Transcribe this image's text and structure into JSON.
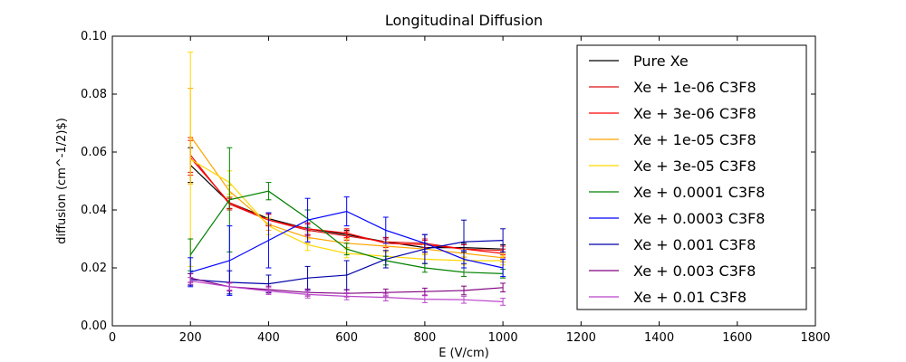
{
  "chart_data": {
    "type": "line",
    "title": "Longitudinal Diffusion",
    "xlabel": "E (V/cm)",
    "ylabel": "diffusion (cm^-1/2)$)",
    "xlim": [
      0,
      1800
    ],
    "ylim": [
      0,
      0.1
    ],
    "xticks": [
      0,
      200,
      400,
      600,
      800,
      1000,
      1200,
      1400,
      1600,
      1800
    ],
    "xtick_labels": [
      "0",
      "200",
      "400",
      "600",
      "800",
      "1000",
      "1200",
      "1400",
      "1600",
      "1800"
    ],
    "yticks": [
      0,
      0.02,
      0.04,
      0.06,
      0.08,
      0.1
    ],
    "ytick_labels": [
      "0.00",
      "0.02",
      "0.04",
      "0.06",
      "0.08",
      "0.10"
    ],
    "grid": false,
    "legend_position": "top-right",
    "x": [
      200,
      300,
      400,
      500,
      600,
      700,
      800,
      900,
      1000
    ],
    "series": [
      {
        "name": "Pure Xe",
        "color": "#000000",
        "values": [
          0.0555,
          0.0425,
          0.037,
          0.0335,
          0.0315,
          0.029,
          0.027,
          0.027,
          0.0265
        ],
        "errors": [
          0.006,
          0.002,
          0.002,
          0.002,
          0.0015,
          0.0015,
          0.0015,
          0.0015,
          0.0015
        ]
      },
      {
        "name": "Xe + 1e-06 C3F8",
        "color": "#dd1111",
        "values": [
          0.059,
          0.042,
          0.0365,
          0.033,
          0.031,
          0.029,
          0.0285,
          0.0265,
          0.026
        ],
        "errors": [
          0.006,
          0.002,
          0.002,
          0.002,
          0.0015,
          0.0015,
          0.0015,
          0.0015,
          0.0015
        ]
      },
      {
        "name": "Xe + 3e-06 C3F8",
        "color": "#ff0000",
        "values": [
          0.058,
          0.0425,
          0.0365,
          0.0335,
          0.032,
          0.0285,
          0.028,
          0.0265,
          0.025
        ],
        "errors": [
          0.006,
          0.002,
          0.002,
          0.002,
          0.0015,
          0.0015,
          0.0015,
          0.0015,
          0.0015
        ]
      },
      {
        "name": "Xe + 1e-05 C3F8",
        "color": "#ffa500",
        "values": [
          0.0655,
          0.0465,
          0.035,
          0.0305,
          0.0285,
          0.0275,
          0.0265,
          0.025,
          0.0235
        ],
        "errors": [
          0.0165,
          0.002,
          0.002,
          0.002,
          0.0015,
          0.0015,
          0.0015,
          0.0015,
          0.0015
        ]
      },
      {
        "name": "Xe + 3e-05 C3F8",
        "color": "#ffd700",
        "values": [
          0.0575,
          0.0495,
          0.0345,
          0.028,
          0.025,
          0.024,
          0.023,
          0.0225,
          0.0225
        ],
        "errors": [
          0.037,
          0.004,
          0.003,
          0.002,
          0.0015,
          0.0015,
          0.0015,
          0.0015,
          0.0015
        ]
      },
      {
        "name": "Xe + 0.0001 C3F8",
        "color": "#008000",
        "values": [
          0.0245,
          0.0435,
          0.0465,
          0.037,
          0.0265,
          0.0225,
          0.02,
          0.0185,
          0.018
        ],
        "errors": [
          0.0055,
          0.018,
          0.003,
          0.003,
          0.002,
          0.0015,
          0.0015,
          0.0015,
          0.0015
        ]
      },
      {
        "name": "Xe + 0.0003 C3F8",
        "color": "#0000ff",
        "values": [
          0.0185,
          0.0225,
          0.0295,
          0.0365,
          0.0395,
          0.033,
          0.0285,
          0.023,
          0.02
        ],
        "errors": [
          0.005,
          0.012,
          0.0095,
          0.0075,
          0.005,
          0.0045,
          0.003,
          0.003,
          0.003
        ]
      },
      {
        "name": "Xe + 0.001 C3F8",
        "color": "#0000aa",
        "values": [
          0.016,
          0.015,
          0.0145,
          0.0165,
          0.0175,
          0.023,
          0.0265,
          0.029,
          0.0295
        ],
        "errors": [
          0.002,
          0.004,
          0.003,
          0.004,
          0.005,
          0.003,
          0.005,
          0.0075,
          0.004
        ]
      },
      {
        "name": "Xe + 0.003 C3F8",
        "color": "#800080",
        "values": [
          0.0165,
          0.0135,
          0.0125,
          0.0115,
          0.0112,
          0.0115,
          0.0118,
          0.0122,
          0.0132
        ],
        "errors": [
          0.0015,
          0.0015,
          0.0012,
          0.0012,
          0.0012,
          0.0012,
          0.0012,
          0.0015,
          0.0015
        ]
      },
      {
        "name": "Xe + 0.01 C3F8",
        "color": "#bb44cc",
        "values": [
          0.0155,
          0.0135,
          0.012,
          0.0108,
          0.0102,
          0.0098,
          0.0092,
          0.009,
          0.0083
        ],
        "errors": [
          0.0012,
          0.0012,
          0.0012,
          0.0012,
          0.0012,
          0.0012,
          0.0012,
          0.0012,
          0.0012
        ]
      }
    ]
  }
}
